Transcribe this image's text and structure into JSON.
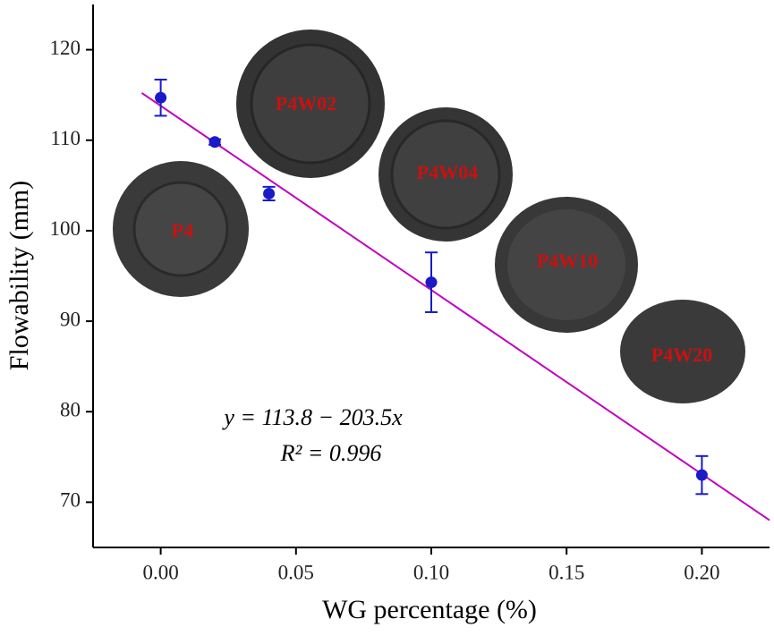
{
  "chart_data": {
    "type": "scatter",
    "x_label": "WG percentage (%)",
    "y_label": "Flowability (mm)",
    "xlim": [
      -0.025,
      0.225
    ],
    "ylim": [
      65,
      125
    ],
    "xticks": [
      {
        "value": 0,
        "label": "0.00"
      },
      {
        "value": 0.05,
        "label": "0.05"
      },
      {
        "value": 0.1,
        "label": "0.10"
      },
      {
        "value": 0.15,
        "label": "0.15"
      },
      {
        "value": 0.2,
        "label": "0.20"
      }
    ],
    "yticks": [
      70,
      80,
      90,
      100,
      110,
      120
    ],
    "series": [
      {
        "color": "#1a1ac8",
        "x": [
          0,
          0.02,
          0.04,
          0.1,
          0.2
        ],
        "values": [
          114.7,
          109.8,
          104.1,
          94.3,
          73.0
        ],
        "errors": [
          2.0,
          0.3,
          0.75,
          3.3,
          2.1
        ]
      }
    ],
    "fit": {
      "color": "#c000c0",
      "intercept": 113.8,
      "slope": -203.5,
      "x_range": [
        -0.007,
        0.225
      ]
    },
    "equation": [
      "y = 113.8 − 203.5x",
      "R² = 0.996"
    ],
    "sample_labels": [
      "P4",
      "P4W02",
      "P4W04",
      "P4W10",
      "P4W20"
    ]
  }
}
